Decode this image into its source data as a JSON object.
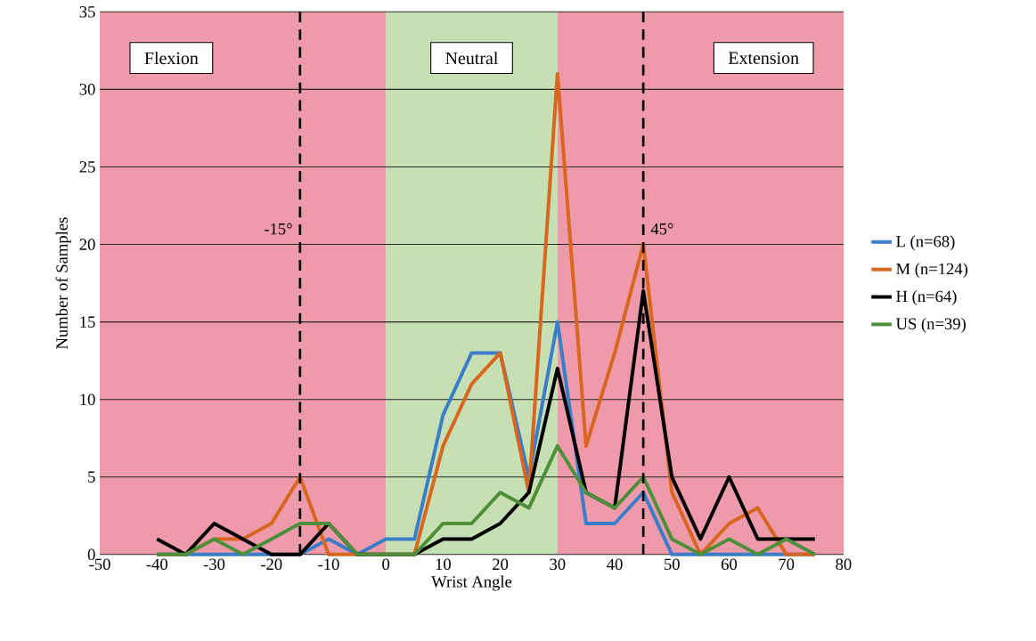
{
  "chart_data": {
    "type": "line",
    "xlabel": "Wrist Angle",
    "ylabel": "Number of Samples",
    "x": [
      -40,
      -35,
      -30,
      -25,
      -20,
      -15,
      -10,
      -5,
      0,
      5,
      10,
      15,
      20,
      25,
      30,
      35,
      40,
      45,
      50,
      55,
      60,
      65,
      70,
      75
    ],
    "series": [
      {
        "name": "L (n=68)",
        "color": "#3a7dc9",
        "values": [
          0,
          0,
          0,
          0,
          0,
          0,
          1,
          0,
          1,
          1,
          9,
          13,
          13,
          5,
          15,
          2,
          2,
          4,
          0,
          0,
          0,
          0,
          0,
          0
        ]
      },
      {
        "name": "M (n=124)",
        "color": "#d9661f",
        "values": [
          0,
          0,
          1,
          1,
          2,
          5,
          0,
          0,
          0,
          0,
          7,
          11,
          13,
          4,
          31,
          7,
          13,
          20,
          4,
          0,
          2,
          3,
          0,
          0
        ]
      },
      {
        "name": "H (n=64)",
        "color": "#000000",
        "values": [
          1,
          0,
          2,
          1,
          0,
          0,
          2,
          0,
          0,
          0,
          1,
          1,
          2,
          4,
          12,
          4,
          3,
          17,
          5,
          1,
          5,
          1,
          1,
          1
        ]
      },
      {
        "name": "US (n=39)",
        "color": "#4e8f3a",
        "values": [
          0,
          0,
          1,
          0,
          1,
          2,
          2,
          0,
          0,
          0,
          2,
          2,
          4,
          3,
          7,
          4,
          3,
          5,
          1,
          0,
          1,
          0,
          1,
          0
        ]
      }
    ],
    "xlim": [
      -50,
      80
    ],
    "xticks": [
      -50,
      -40,
      -30,
      -20,
      -10,
      0,
      10,
      20,
      30,
      40,
      50,
      60,
      70,
      80
    ],
    "ylim": [
      0,
      35
    ],
    "yticks": [
      0,
      5,
      10,
      15,
      20,
      25,
      30,
      35
    ],
    "grid": "y",
    "legend": "right",
    "line_style": "solid",
    "bands": [
      {
        "axis": "x",
        "from": -50,
        "to": 0,
        "label": "Flexion",
        "color": "#ee9aab"
      },
      {
        "axis": "x",
        "from": 0,
        "to": 30,
        "label": "Neutral",
        "color": "#c6e0b4"
      },
      {
        "axis": "x",
        "from": 30,
        "to": 80,
        "label": "Extension",
        "color": "#ee9aab"
      }
    ],
    "ref_lines": [
      {
        "axis": "x",
        "value": -15,
        "label": "-15°",
        "line_style": "dashed"
      },
      {
        "axis": "x",
        "value": 45,
        "label": "45°",
        "line_style": "dashed"
      }
    ]
  }
}
